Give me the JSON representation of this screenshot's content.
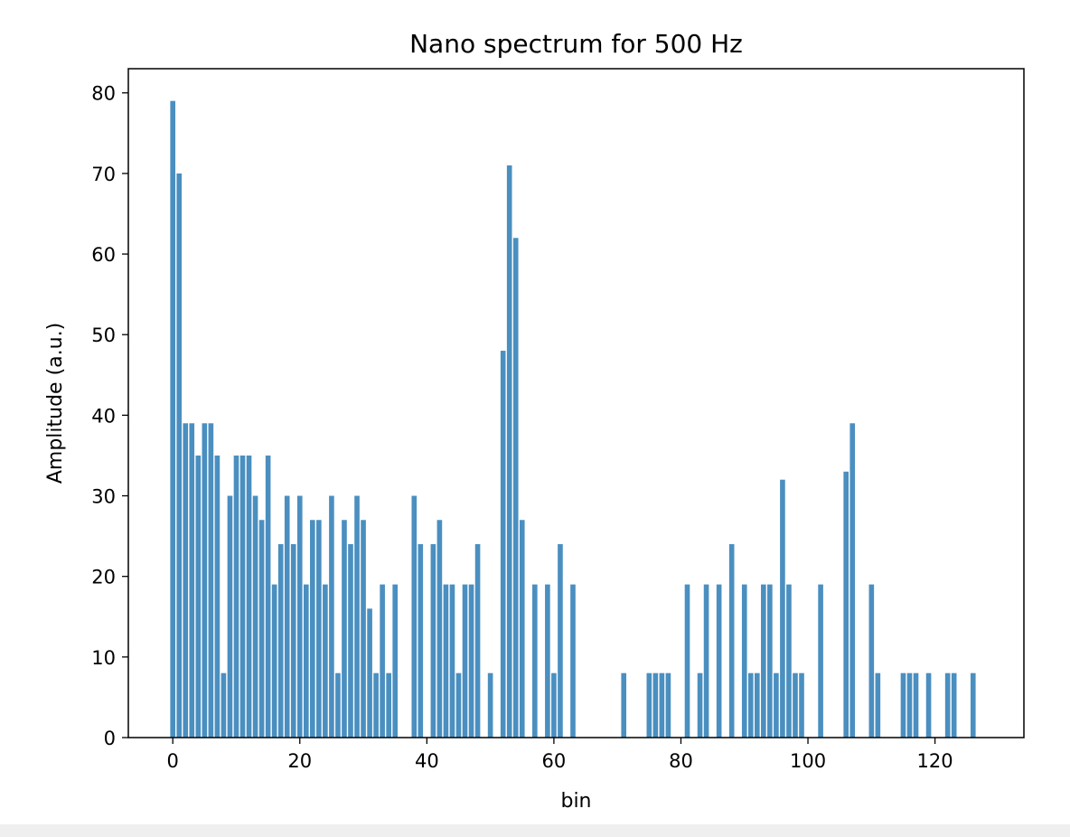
{
  "chart_data": {
    "type": "bar",
    "title": "Nano spectrum for 500 Hz",
    "xlabel": "bin",
    "ylabel": "Amplitude (a.u.)",
    "xlim": [
      -7,
      134
    ],
    "ylim": [
      0,
      83
    ],
    "xticks": [
      0,
      20,
      40,
      60,
      80,
      100,
      120
    ],
    "yticks": [
      0,
      10,
      20,
      30,
      40,
      50,
      60,
      70,
      80
    ],
    "bar_color": "#4a8fc0",
    "grid": false,
    "legend": "none",
    "x": [
      0,
      1,
      2,
      3,
      4,
      5,
      6,
      7,
      8,
      9,
      10,
      11,
      12,
      13,
      14,
      15,
      16,
      17,
      18,
      19,
      20,
      21,
      22,
      23,
      24,
      25,
      26,
      27,
      28,
      29,
      30,
      31,
      32,
      33,
      34,
      35,
      38,
      39,
      41,
      42,
      43,
      44,
      45,
      46,
      47,
      48,
      50,
      52,
      53,
      54,
      55,
      57,
      59,
      60,
      61,
      63,
      71,
      75,
      76,
      77,
      78,
      81,
      83,
      84,
      86,
      88,
      90,
      91,
      92,
      93,
      94,
      95,
      96,
      97,
      98,
      99,
      102,
      106,
      107,
      110,
      111,
      115,
      116,
      117,
      119,
      122,
      123,
      126
    ],
    "values": [
      79,
      70,
      39,
      39,
      35,
      39,
      39,
      35,
      8,
      30,
      35,
      35,
      35,
      30,
      27,
      35,
      19,
      24,
      30,
      24,
      30,
      19,
      27,
      27,
      19,
      30,
      8,
      27,
      24,
      30,
      27,
      16,
      8,
      19,
      8,
      19,
      30,
      24,
      24,
      27,
      19,
      19,
      8,
      19,
      19,
      24,
      8,
      48,
      71,
      62,
      27,
      19,
      19,
      8,
      24,
      19,
      8,
      8,
      8,
      8,
      8,
      19,
      8,
      19,
      19,
      24,
      19,
      8,
      8,
      19,
      19,
      8,
      32,
      19,
      8,
      8,
      19,
      33,
      39,
      19,
      8,
      8,
      8,
      8,
      8,
      8,
      8,
      8
    ]
  }
}
